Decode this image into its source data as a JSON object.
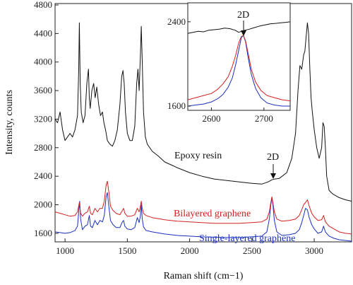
{
  "chart_data": {
    "type": "line",
    "xlabel": "Raman shift (cm−1)",
    "ylabel": "Intensity, counts",
    "xlim": [
      920,
      3300
    ],
    "ylim": [
      1480,
      4820
    ],
    "xticks": [
      1000,
      1500,
      2000,
      2500,
      3000
    ],
    "yticks": [
      1600,
      2000,
      2400,
      2800,
      3200,
      3600,
      4000,
      4400,
      4800
    ],
    "grid": false,
    "series": [
      {
        "name": "Epoxy resin",
        "color": "#111111",
        "x": [
          920,
          940,
          960,
          980,
          1000,
          1020,
          1040,
          1060,
          1080,
          1100,
          1110,
          1115,
          1122,
          1130,
          1145,
          1160,
          1175,
          1188,
          1195,
          1202,
          1215,
          1230,
          1242,
          1255,
          1270,
          1285,
          1300,
          1312,
          1325,
          1340,
          1360,
          1380,
          1400,
          1420,
          1440,
          1455,
          1465,
          1475,
          1485,
          1500,
          1520,
          1540,
          1560,
          1575,
          1585,
          1595,
          1605,
          1612,
          1620,
          1630,
          1645,
          1660,
          1700,
          1750,
          1800,
          1850,
          1900,
          2000,
          2100,
          2200,
          2300,
          2400,
          2500,
          2580,
          2630,
          2660,
          2680,
          2720,
          2780,
          2820,
          2850,
          2870,
          2885,
          2900,
          2915,
          2925,
          2935,
          2945,
          2955,
          2965,
          2975,
          2985,
          3000,
          3020,
          3040,
          3060,
          3070,
          3080,
          3090,
          3100,
          3120,
          3150,
          3200,
          3250,
          3300
        ],
        "y": [
          3200,
          3150,
          3300,
          3050,
          2900,
          2950,
          3000,
          2950,
          3050,
          3250,
          3900,
          4550,
          3700,
          3300,
          3150,
          3250,
          3700,
          3900,
          3500,
          3350,
          3600,
          3700,
          3500,
          3650,
          3400,
          3250,
          3300,
          3150,
          3050,
          2900,
          2850,
          2820,
          2900,
          3050,
          3400,
          3800,
          3880,
          3700,
          3300,
          3000,
          2900,
          2900,
          3100,
          3700,
          3900,
          3600,
          4100,
          4500,
          4000,
          3300,
          2950,
          2850,
          2750,
          2680,
          2600,
          2560,
          2520,
          2450,
          2400,
          2360,
          2340,
          2320,
          2300,
          2290,
          2320,
          2350,
          2360,
          2370,
          2450,
          2650,
          3000,
          3600,
          3950,
          3900,
          4100,
          4150,
          4350,
          4550,
          4400,
          3900,
          3500,
          3300,
          3050,
          2800,
          2650,
          2800,
          3150,
          3100,
          2800,
          2400,
          2200,
          2150,
          2100,
          2070,
          2050
        ]
      },
      {
        "name": "Bilayered graphene",
        "color": "#d42020",
        "x": [
          920,
          960,
          1000,
          1040,
          1080,
          1100,
          1115,
          1125,
          1140,
          1160,
          1180,
          1195,
          1205,
          1220,
          1240,
          1260,
          1280,
          1300,
          1315,
          1330,
          1340,
          1350,
          1365,
          1385,
          1410,
          1440,
          1460,
          1470,
          1480,
          1500,
          1530,
          1560,
          1580,
          1595,
          1605,
          1612,
          1620,
          1630,
          1650,
          1700,
          1800,
          1900,
          2000,
          2100,
          2200,
          2300,
          2400,
          2500,
          2580,
          2620,
          2640,
          2652,
          2660,
          2668,
          2680,
          2700,
          2740,
          2800,
          2850,
          2880,
          2900,
          2915,
          2930,
          2945,
          2960,
          2980,
          3000,
          3030,
          3060,
          3075,
          3090,
          3120,
          3160,
          3200,
          3250,
          3300
        ],
        "y": [
          1900,
          1880,
          1860,
          1840,
          1850,
          1900,
          2030,
          1880,
          1840,
          1880,
          1900,
          1980,
          1880,
          1860,
          1950,
          1900,
          1950,
          1950,
          2050,
          2280,
          2330,
          2200,
          1980,
          1920,
          1880,
          1860,
          1920,
          1950,
          1880,
          1840,
          1840,
          1860,
          1950,
          1900,
          1980,
          2050,
          1950,
          1880,
          1850,
          1820,
          1790,
          1770,
          1760,
          1750,
          1740,
          1740,
          1740,
          1750,
          1760,
          1800,
          1900,
          2030,
          2110,
          2030,
          1900,
          1800,
          1770,
          1780,
          1800,
          1850,
          1930,
          2000,
          2030,
          2070,
          1980,
          1880,
          1830,
          1780,
          1790,
          1850,
          1760,
          1700,
          1660,
          1620,
          1600,
          1590
        ]
      },
      {
        "name": "Single-layered graphene",
        "color": "#1a2fbf",
        "x": [
          920,
          960,
          1000,
          1040,
          1080,
          1100,
          1110,
          1118,
          1125,
          1140,
          1160,
          1180,
          1195,
          1205,
          1220,
          1240,
          1260,
          1280,
          1300,
          1315,
          1330,
          1340,
          1350,
          1365,
          1385,
          1410,
          1440,
          1460,
          1470,
          1480,
          1500,
          1530,
          1560,
          1580,
          1595,
          1605,
          1612,
          1620,
          1630,
          1650,
          1700,
          1800,
          1900,
          2000,
          2100,
          2200,
          2300,
          2400,
          2500,
          2580,
          2620,
          2640,
          2652,
          2660,
          2668,
          2680,
          2700,
          2740,
          2800,
          2850,
          2880,
          2900,
          2915,
          2930,
          2945,
          2960,
          2980,
          3000,
          3030,
          3060,
          3075,
          3090,
          3120,
          3160,
          3200,
          3250,
          3300
        ],
        "y": [
          1620,
          1610,
          1600,
          1610,
          1640,
          1700,
          1900,
          2050,
          1800,
          1650,
          1700,
          1720,
          1850,
          1700,
          1680,
          1780,
          1720,
          1780,
          1760,
          1850,
          2120,
          2170,
          2000,
          1780,
          1720,
          1680,
          1680,
          1760,
          1780,
          1700,
          1660,
          1650,
          1680,
          1820,
          1750,
          1850,
          2000,
          1800,
          1690,
          1640,
          1620,
          1590,
          1570,
          1560,
          1550,
          1545,
          1540,
          1540,
          1550,
          1560,
          1620,
          1800,
          2000,
          2100,
          2000,
          1780,
          1620,
          1570,
          1580,
          1600,
          1650,
          1750,
          1850,
          1950,
          1930,
          1820,
          1720,
          1660,
          1600,
          1620,
          1700,
          1620,
          1560,
          1530,
          1510,
          1500,
          1490
        ]
      }
    ],
    "annotations": {
      "epoxy_label": "Epoxy resin",
      "bilayer_label": "Bilayered graphene",
      "single_label": "Single-layered graphene",
      "peak_label": "2D"
    },
    "inset": {
      "xlim": [
        2555,
        2750
      ],
      "ylim": [
        1560,
        2580
      ],
      "xticks": [
        2600,
        2700
      ],
      "yticks": [
        1600,
        2400
      ],
      "peak_label": "2D",
      "series": [
        {
          "name": "Epoxy resin",
          "color": "#111111",
          "x": [
            2555,
            2565,
            2575,
            2585,
            2595,
            2605,
            2615,
            2625,
            2635,
            2645,
            2652,
            2658,
            2664,
            2672,
            2682,
            2692,
            2702,
            2712,
            2722,
            2732,
            2742,
            2750
          ],
          "y": [
            2290,
            2300,
            2310,
            2305,
            2320,
            2325,
            2330,
            2340,
            2335,
            2320,
            2300,
            2310,
            2320,
            2330,
            2345,
            2360,
            2370,
            2380,
            2385,
            2390,
            2395,
            2400
          ]
        },
        {
          "name": "Bilayered graphene",
          "color": "#d42020",
          "x": [
            2555,
            2570,
            2585,
            2600,
            2612,
            2622,
            2632,
            2640,
            2646,
            2652,
            2657,
            2661,
            2665,
            2670,
            2676,
            2684,
            2694,
            2706,
            2720,
            2735,
            2750
          ],
          "y": [
            1660,
            1680,
            1700,
            1720,
            1760,
            1810,
            1880,
            1980,
            2080,
            2200,
            2260,
            2270,
            2220,
            2100,
            1950,
            1830,
            1750,
            1700,
            1680,
            1660,
            1650
          ]
        },
        {
          "name": "Single-layered graphene",
          "color": "#1a2fbf",
          "x": [
            2555,
            2570,
            2585,
            2600,
            2612,
            2622,
            2632,
            2640,
            2646,
            2652,
            2657,
            2661,
            2665,
            2670,
            2676,
            2684,
            2694,
            2706,
            2720,
            2735,
            2750
          ],
          "y": [
            1600,
            1610,
            1620,
            1640,
            1670,
            1710,
            1780,
            1870,
            1990,
            2130,
            2250,
            2270,
            2210,
            2060,
            1900,
            1770,
            1680,
            1630,
            1610,
            1600,
            1600
          ]
        }
      ]
    }
  }
}
